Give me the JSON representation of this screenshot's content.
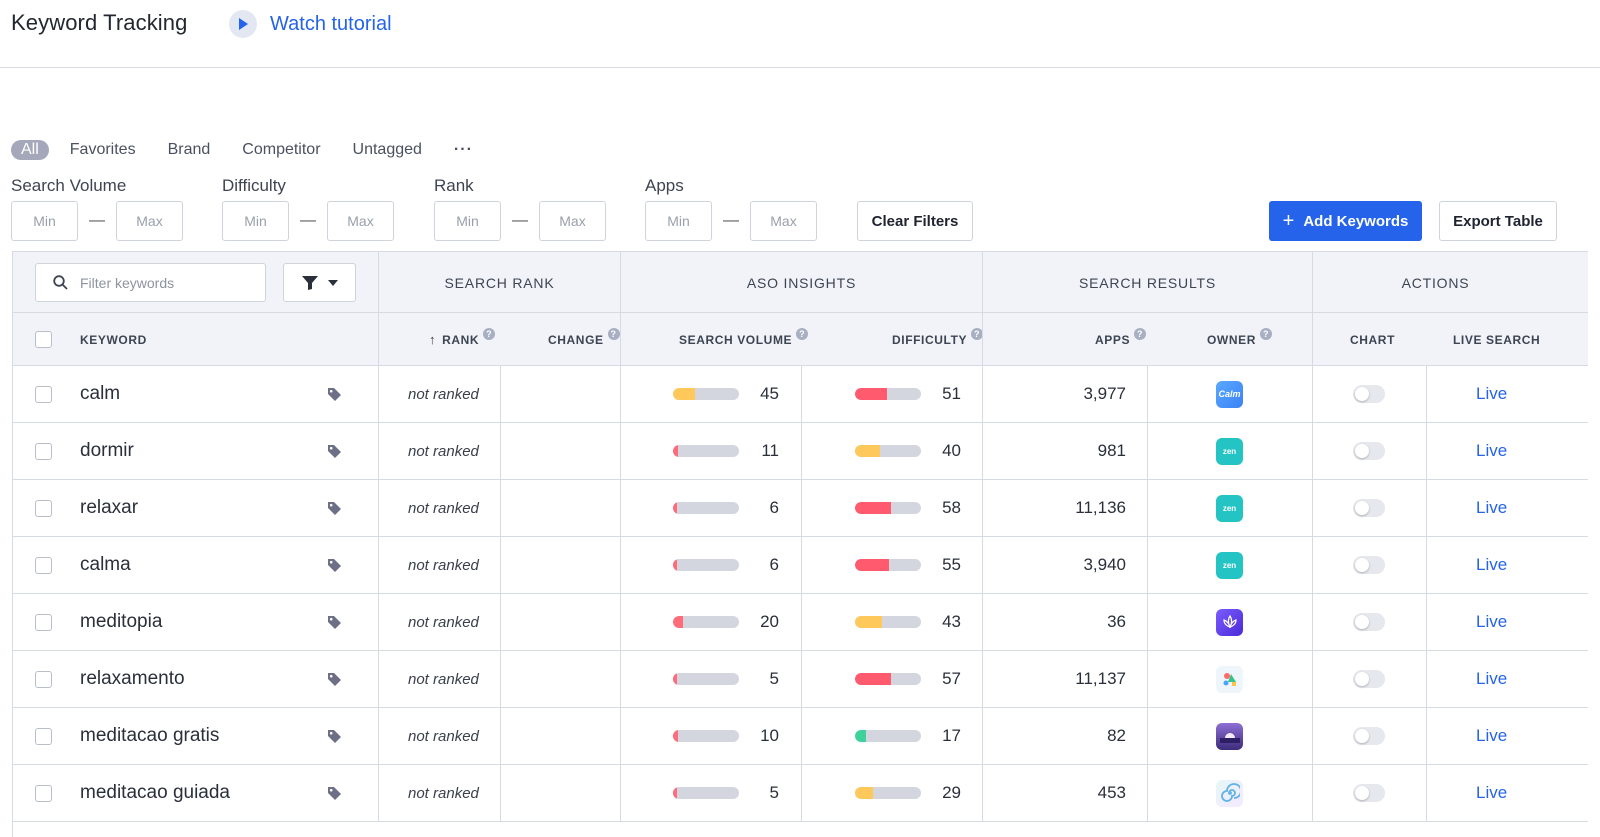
{
  "header": {
    "title": "Keyword Tracking",
    "tutorial_label": "Watch tutorial"
  },
  "tags": {
    "items": [
      "All",
      "Favorites",
      "Brand",
      "Competitor",
      "Untagged"
    ],
    "active": "All",
    "more_label": "···"
  },
  "filters": {
    "search_volume_label": "Search Volume",
    "difficulty_label": "Difficulty",
    "rank_label": "Rank",
    "apps_label": "Apps",
    "min_placeholder": "Min",
    "max_placeholder": "Max",
    "separator": "—",
    "clear_label": "Clear Filters"
  },
  "actions": {
    "add_keywords_label": "Add Keywords",
    "export_label": "Export Table"
  },
  "table": {
    "search_placeholder": "Filter keywords",
    "groups": {
      "search_rank": "SEARCH RANK",
      "aso_insights": "ASO INSIGHTS",
      "search_results": "SEARCH RESULTS",
      "actions": "ACTIONS"
    },
    "columns": {
      "keyword": "KEYWORD",
      "rank": "RANK",
      "change": "CHANGE",
      "search_volume": "SEARCH VOLUME",
      "difficulty": "DIFFICULTY",
      "apps": "APPS",
      "owner": "OWNER",
      "chart": "CHART",
      "live_search": "LIVE SEARCH"
    },
    "rank_sort_arrow": "↑",
    "help_glyph": "?",
    "rows": [
      {
        "keyword": "calm",
        "rank": "not ranked",
        "change": "",
        "volume": 45,
        "difficulty": 51,
        "apps": "3,977",
        "owner": "calm",
        "live": "Live"
      },
      {
        "keyword": "dormir",
        "rank": "not ranked",
        "change": "",
        "volume": 11,
        "difficulty": 40,
        "apps": "981",
        "owner": "zen",
        "live": "Live"
      },
      {
        "keyword": "relaxar",
        "rank": "not ranked",
        "change": "",
        "volume": 6,
        "difficulty": 58,
        "apps": "11,136",
        "owner": "zen",
        "live": "Live"
      },
      {
        "keyword": "calma",
        "rank": "not ranked",
        "change": "",
        "volume": 6,
        "difficulty": 55,
        "apps": "3,940",
        "owner": "zen",
        "live": "Live"
      },
      {
        "keyword": "meditopia",
        "rank": "not ranked",
        "change": "",
        "volume": 20,
        "difficulty": 43,
        "apps": "36",
        "owner": "meditopia",
        "live": "Live"
      },
      {
        "keyword": "relaxamento",
        "rank": "not ranked",
        "change": "",
        "volume": 5,
        "difficulty": 57,
        "apps": "11,137",
        "owner": "colorful",
        "live": "Live"
      },
      {
        "keyword": "meditacao gratis",
        "rank": "not ranked",
        "change": "",
        "volume": 10,
        "difficulty": 17,
        "apps": "82",
        "owner": "sunset",
        "live": "Live"
      },
      {
        "keyword": "meditacao guiada",
        "rank": "not ranked",
        "change": "",
        "volume": 5,
        "difficulty": 29,
        "apps": "453",
        "owner": "swirl",
        "live": "Live"
      }
    ]
  },
  "owner_labels": {
    "calm": "Calm",
    "zen": "zen"
  },
  "colors": {
    "accent": "#2563eb",
    "bar_low": "#ff6b7a",
    "bar_mid": "#ffc85a",
    "bar_easy": "#3ed19a",
    "bar_high": "#ff5a6e",
    "bar_track": "#d3d6de",
    "calm_icon": "#3b82f6",
    "zen_icon": "#25c4c4"
  }
}
